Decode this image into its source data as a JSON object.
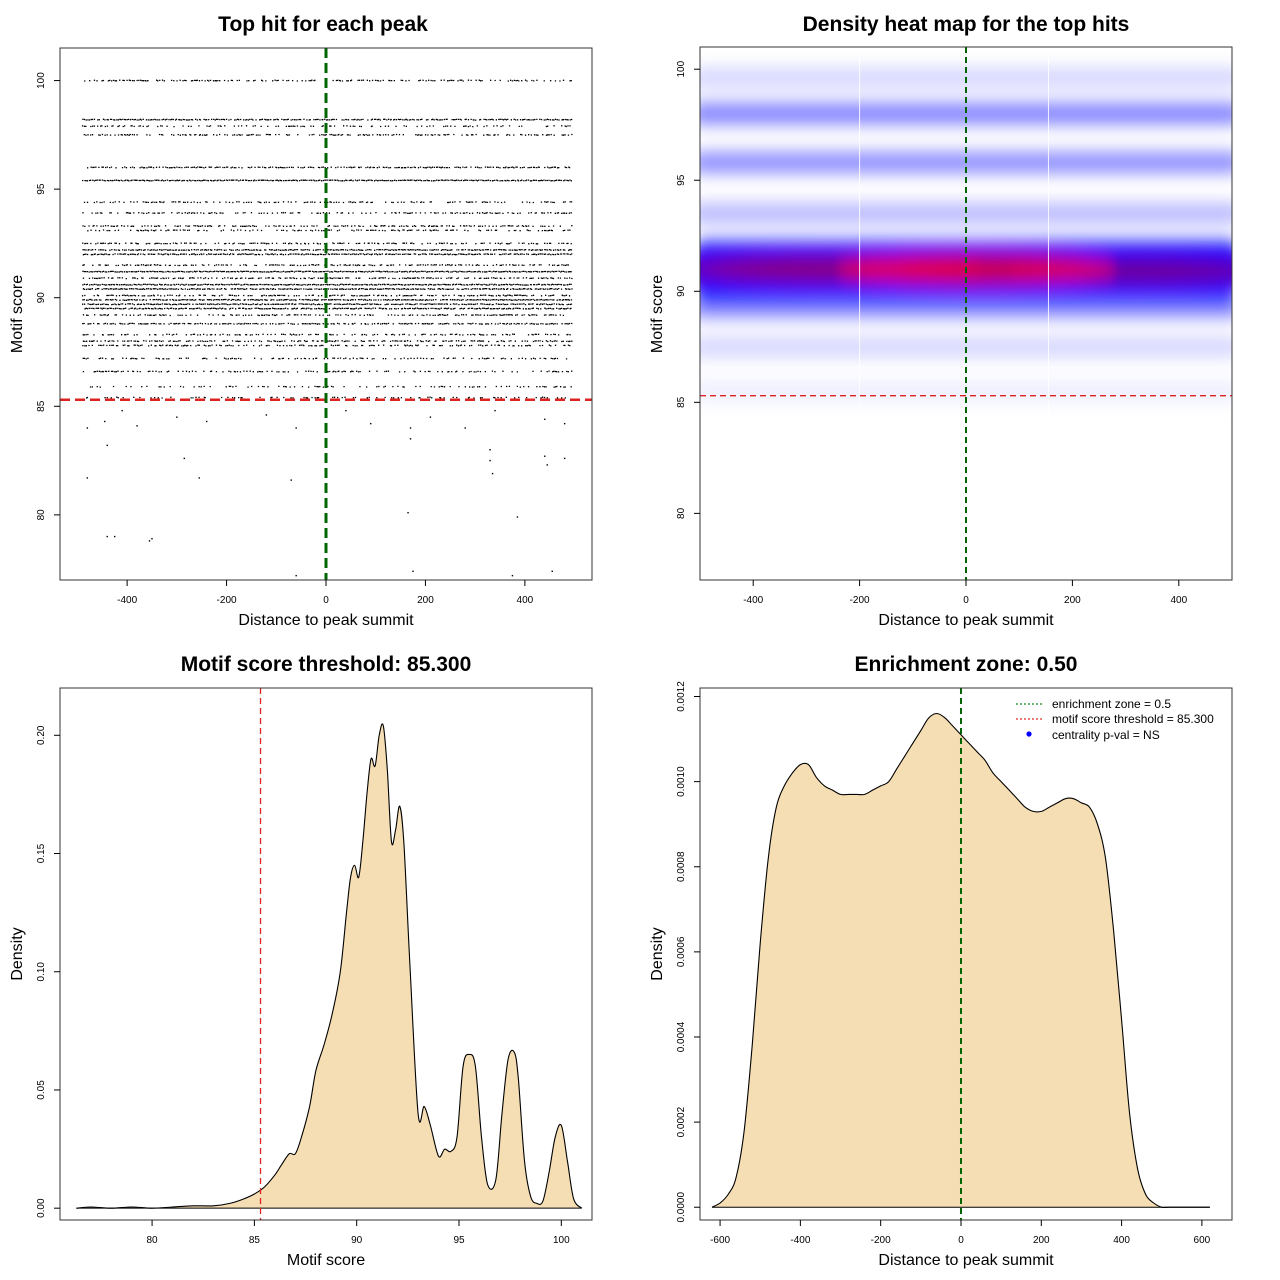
{
  "chart_data": [
    {
      "id": "scatter",
      "type": "scatter",
      "title": "Top hit for each peak",
      "xlabel": "Distance to peak summit",
      "ylabel": "Motif score",
      "xlim": [
        -535,
        535
      ],
      "ylim": [
        77,
        101.5
      ],
      "xticks": [
        -400,
        -200,
        0,
        200,
        400
      ],
      "yticks": [
        80,
        85,
        90,
        95,
        100
      ],
      "hline": 85.3,
      "vline": 0,
      "x_range": [
        -490,
        495
      ],
      "score_levels": [
        {
          "y": 100.0,
          "density": 0.55
        },
        {
          "y": 98.2,
          "density": 0.85
        },
        {
          "y": 97.9,
          "density": 0.35
        },
        {
          "y": 97.5,
          "density": 0.55
        },
        {
          "y": 96.0,
          "density": 0.7
        },
        {
          "y": 95.4,
          "density": 1.0
        },
        {
          "y": 94.4,
          "density": 0.45
        },
        {
          "y": 93.9,
          "density": 0.45
        },
        {
          "y": 93.3,
          "density": 0.55
        },
        {
          "y": 93.1,
          "density": 0.4
        },
        {
          "y": 92.5,
          "density": 0.5
        },
        {
          "y": 92.2,
          "density": 0.9
        },
        {
          "y": 92.0,
          "density": 0.9
        },
        {
          "y": 91.5,
          "density": 0.6
        },
        {
          "y": 91.2,
          "density": 1.0
        },
        {
          "y": 90.9,
          "density": 0.6
        },
        {
          "y": 90.6,
          "density": 1.0
        },
        {
          "y": 90.4,
          "density": 0.9
        },
        {
          "y": 90.1,
          "density": 0.6
        },
        {
          "y": 89.9,
          "density": 0.9
        },
        {
          "y": 89.7,
          "density": 0.9
        },
        {
          "y": 89.5,
          "density": 0.9
        },
        {
          "y": 89.2,
          "density": 0.5
        },
        {
          "y": 88.8,
          "density": 0.7
        },
        {
          "y": 88.3,
          "density": 0.5
        },
        {
          "y": 88.0,
          "density": 0.6
        },
        {
          "y": 87.8,
          "density": 0.55
        },
        {
          "y": 87.2,
          "density": 0.45
        },
        {
          "y": 86.6,
          "density": 0.4
        },
        {
          "y": 85.9,
          "density": 0.3
        },
        {
          "y": 85.4,
          "density": 0.25
        }
      ],
      "outliers": [
        [
          -480,
          84.0
        ],
        [
          -445,
          84.3
        ],
        [
          -410,
          84.8
        ],
        [
          -380,
          84.1
        ],
        [
          -300,
          84.5
        ],
        [
          -240,
          84.3
        ],
        [
          -120,
          84.6
        ],
        [
          -60,
          84.0
        ],
        [
          40,
          84.8
        ],
        [
          90,
          84.2
        ],
        [
          170,
          84.0
        ],
        [
          210,
          84.5
        ],
        [
          280,
          84.0
        ],
        [
          340,
          84.8
        ],
        [
          440,
          84.4
        ],
        [
          480,
          84.2
        ],
        [
          -440,
          83.2
        ],
        [
          170,
          83.5
        ],
        [
          330,
          83.0
        ],
        [
          440,
          82.7
        ],
        [
          480,
          82.6
        ],
        [
          330,
          82.5
        ],
        [
          -285,
          82.6
        ],
        [
          -480,
          81.7
        ],
        [
          -255,
          81.7
        ],
        [
          -70,
          81.6
        ],
        [
          335,
          81.9
        ],
        [
          445,
          82.3
        ],
        [
          -440,
          79.0
        ],
        [
          -425,
          79.0
        ],
        [
          -355,
          78.8
        ],
        [
          -350,
          78.9
        ],
        [
          165,
          80.1
        ],
        [
          385,
          79.9
        ],
        [
          -60,
          77.2
        ],
        [
          175,
          77.4
        ],
        [
          375,
          77.2
        ],
        [
          455,
          77.4
        ]
      ]
    },
    {
      "id": "heatmap",
      "type": "heatmap",
      "title": "Density heat map for the top hits",
      "xlabel": "Distance to peak summit",
      "ylabel": "Motif score",
      "xlim": [
        -500,
        500
      ],
      "ylim": [
        77,
        101
      ],
      "xticks": [
        -400,
        -200,
        0,
        200,
        400
      ],
      "yticks": [
        80,
        85,
        90,
        95,
        100
      ],
      "hline": 85.3,
      "vline": 0,
      "white_lines": [
        -200,
        155
      ],
      "bands": [
        {
          "y": 99.6,
          "intensity": 0.18
        },
        {
          "y": 98.0,
          "intensity": 0.55
        },
        {
          "y": 95.8,
          "intensity": 0.5
        },
        {
          "y": 93.5,
          "intensity": 0.3
        },
        {
          "y": 91.0,
          "intensity": 1.0
        },
        {
          "y": 89.3,
          "intensity": 0.55
        },
        {
          "y": 87.5,
          "intensity": 0.18
        },
        {
          "y": 85.5,
          "intensity": 0.08
        }
      ]
    },
    {
      "id": "score_density",
      "type": "area",
      "title": "Motif score threshold: 85.300",
      "xlabel": "Motif score",
      "ylabel": "Density",
      "xlim": [
        75.5,
        101.5
      ],
      "ylim": [
        -0.005,
        0.22
      ],
      "xticks": [
        80,
        85,
        90,
        95,
        100
      ],
      "yticks": [
        0.0,
        0.05,
        0.1,
        0.15,
        0.2
      ],
      "ytick_labels": [
        "0.00",
        "0.05",
        "0.10",
        "0.15",
        "0.20"
      ],
      "vline": 85.3,
      "x": [
        76.3,
        77.0,
        78.0,
        79.0,
        80.0,
        81.0,
        82.0,
        83.0,
        83.8,
        84.5,
        85.0,
        85.5,
        86.0,
        86.3,
        86.7,
        87.0,
        87.3,
        87.7,
        88.0,
        88.4,
        88.8,
        89.2,
        89.5,
        89.7,
        89.9,
        90.1,
        90.3,
        90.5,
        90.7,
        90.9,
        91.1,
        91.3,
        91.5,
        91.7,
        91.9,
        92.1,
        92.3,
        92.6,
        93.0,
        93.3,
        93.6,
        94.0,
        94.3,
        94.6,
        94.9,
        95.2,
        95.5,
        95.8,
        96.1,
        96.4,
        96.8,
        97.1,
        97.4,
        97.7,
        97.9,
        98.2,
        98.5,
        98.8,
        99.1,
        99.4,
        99.7,
        100.0,
        100.3,
        100.6,
        101.0
      ],
      "y": [
        0.0,
        0.0005,
        0.0,
        0.0005,
        0.0,
        0.0005,
        0.001,
        0.001,
        0.002,
        0.004,
        0.006,
        0.009,
        0.014,
        0.018,
        0.023,
        0.023,
        0.03,
        0.043,
        0.058,
        0.069,
        0.082,
        0.1,
        0.125,
        0.14,
        0.145,
        0.14,
        0.155,
        0.175,
        0.19,
        0.187,
        0.2,
        0.204,
        0.185,
        0.155,
        0.16,
        0.17,
        0.155,
        0.103,
        0.04,
        0.043,
        0.035,
        0.022,
        0.025,
        0.024,
        0.03,
        0.06,
        0.065,
        0.06,
        0.03,
        0.01,
        0.012,
        0.04,
        0.063,
        0.066,
        0.055,
        0.02,
        0.005,
        0.002,
        0.003,
        0.015,
        0.03,
        0.035,
        0.02,
        0.004,
        0.0
      ]
    },
    {
      "id": "distance_density",
      "type": "area",
      "title": "Enrichment zone: 0.50",
      "xlabel": "Distance to peak summit",
      "ylabel": "Density",
      "xlim": [
        -650,
        675
      ],
      "ylim": [
        -3e-05,
        0.00122
      ],
      "xticks": [
        -600,
        -400,
        -200,
        0,
        200,
        400,
        600
      ],
      "yticks": [
        0.0,
        0.0002,
        0.0004,
        0.0006,
        0.0008,
        0.001,
        0.0012
      ],
      "ytick_labels": [
        "0.0000",
        "0.0002",
        "0.0004",
        "0.0006",
        "0.0008",
        "0.0010",
        "0.0012"
      ],
      "vline": 0,
      "x": [
        -620,
        -600,
        -580,
        -560,
        -540,
        -520,
        -500,
        -480,
        -460,
        -440,
        -420,
        -400,
        -380,
        -360,
        -340,
        -320,
        -300,
        -280,
        -260,
        -240,
        -220,
        -200,
        -180,
        -160,
        -140,
        -120,
        -100,
        -80,
        -60,
        -40,
        -20,
        0,
        20,
        40,
        60,
        80,
        100,
        120,
        140,
        160,
        180,
        200,
        220,
        240,
        260,
        280,
        300,
        320,
        340,
        360,
        380,
        400,
        420,
        440,
        460,
        480,
        500,
        520,
        540,
        560,
        580,
        600,
        620
      ],
      "y": [
        0.0,
        1e-05,
        3e-05,
        7e-05,
        0.00018,
        0.00038,
        0.00062,
        0.00082,
        0.00094,
        0.00099,
        0.00102,
        0.00104,
        0.00104,
        0.00101,
        0.00099,
        0.00098,
        0.00097,
        0.00097,
        0.00097,
        0.00097,
        0.00098,
        0.00099,
        0.001,
        0.00103,
        0.00106,
        0.00109,
        0.00112,
        0.00115,
        0.00116,
        0.00115,
        0.00113,
        0.00111,
        0.00109,
        0.00107,
        0.00105,
        0.00102,
        0.001,
        0.00098,
        0.00096,
        0.00094,
        0.00093,
        0.00093,
        0.00094,
        0.00095,
        0.00096,
        0.00096,
        0.00095,
        0.00094,
        0.0009,
        0.00082,
        0.00065,
        0.00044,
        0.00022,
        9e-05,
        3e-05,
        1e-05,
        0.0,
        0.0,
        0.0,
        0.0,
        0.0,
        0.0,
        0.0
      ],
      "legend": [
        {
          "label": "enrichment zone = 0.5",
          "color": "#1a8a1a",
          "style": "dotted"
        },
        {
          "label": "motif score threshold = 85.300",
          "color": "#e03030",
          "style": "dotted"
        },
        {
          "label": "centrality p-val = NS",
          "color": "#0000ff",
          "style": "point"
        }
      ],
      "legend_position": "top-right"
    }
  ],
  "colors": {
    "fill": "#f5deb3",
    "green_line": "#006400",
    "red_line": "#dd2222",
    "heat_blue": "#0000ff",
    "heat_red": "#ff0000"
  }
}
